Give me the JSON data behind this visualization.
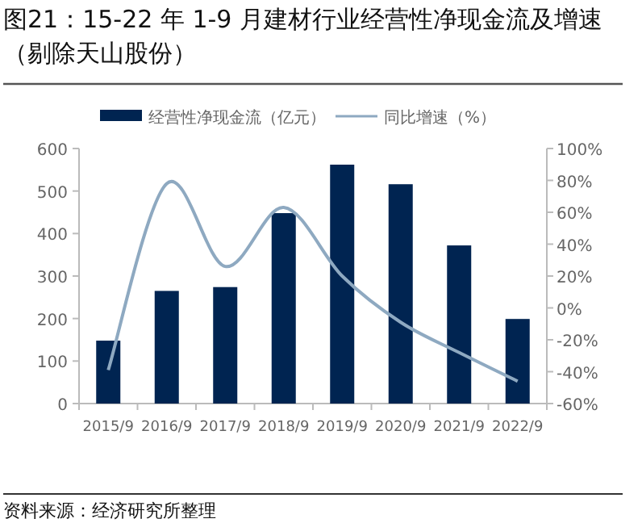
{
  "chart_data": {
    "type": "bar",
    "title": "图21：15-22 年 1-9 月建材行业经营性净现金流及增速（剔除天山股份）",
    "categories": [
      "2015/9",
      "2016/9",
      "2017/9",
      "2018/9",
      "2019/9",
      "2020/9",
      "2021/9",
      "2022/9"
    ],
    "series": [
      {
        "name": "经营性净现金流（亿元）",
        "color": "#002451",
        "values": [
          148,
          265,
          274,
          448,
          562,
          516,
          372,
          199
        ]
      },
      {
        "name": "同比增速（%）",
        "type": "line",
        "axis": "y2",
        "color": "#8ea9c1",
        "values": [
          -39,
          78,
          26,
          63,
          20,
          -9,
          -28,
          -46
        ]
      }
    ],
    "ylim": [
      0,
      600
    ],
    "yticks": [
      0,
      100,
      200,
      300,
      400,
      500,
      600
    ],
    "y2lim": [
      -60,
      100
    ],
    "y2ticks": [
      {
        "value": -60,
        "label": "-60%"
      },
      {
        "value": -40,
        "label": "-40%"
      },
      {
        "value": -20,
        "label": "-20%"
      },
      {
        "value": 0,
        "label": "0%"
      },
      {
        "value": 20,
        "label": "20%"
      },
      {
        "value": 40,
        "label": "40%"
      },
      {
        "value": 60,
        "label": "60%"
      },
      {
        "value": 80,
        "label": "80%"
      },
      {
        "value": 100,
        "label": "100%"
      }
    ],
    "legend": "top",
    "grid": false,
    "annotations": [
      "资料来源：经济研究所整理"
    ]
  }
}
